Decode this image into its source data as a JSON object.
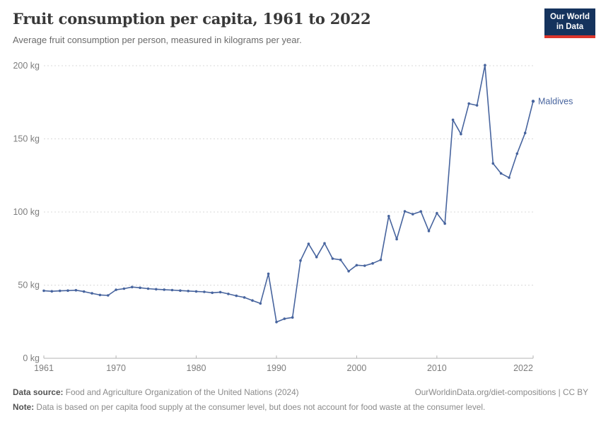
{
  "header": {
    "title": "Fruit consumption per capita, 1961 to 2022",
    "subtitle": "Average fruit consumption per person, measured in kilograms per year.",
    "logo": {
      "line1": "Our World",
      "line2": "in Data",
      "bg_color": "#15335d",
      "bar_color": "#dc352b"
    }
  },
  "chart_data": {
    "type": "line",
    "title": "Fruit consumption per capita, 1961 to 2022",
    "xlabel": "",
    "ylabel": "kilograms per year",
    "xlim": [
      1961,
      2022
    ],
    "ylim": [
      0,
      207
    ],
    "grid": "horizontal-dashed",
    "legend_position": "end-of-line-label",
    "x_ticks": [
      1961,
      1970,
      1980,
      1990,
      2000,
      2010,
      2022
    ],
    "y_ticks": [
      {
        "value": 0,
        "label": "0 kg"
      },
      {
        "value": 50,
        "label": "50 kg"
      },
      {
        "value": 100,
        "label": "100 kg"
      },
      {
        "value": 150,
        "label": "150 kg"
      },
      {
        "value": 200,
        "label": "200 kg"
      }
    ],
    "line_color": "#47649e",
    "series": [
      {
        "name": "Maldives",
        "x": [
          1961,
          1962,
          1963,
          1964,
          1965,
          1966,
          1967,
          1968,
          1969,
          1970,
          1971,
          1972,
          1973,
          1974,
          1975,
          1976,
          1977,
          1978,
          1979,
          1980,
          1981,
          1982,
          1983,
          1984,
          1985,
          1986,
          1987,
          1988,
          1989,
          1990,
          1991,
          1992,
          1993,
          1994,
          1995,
          1996,
          1997,
          1998,
          1999,
          2000,
          2001,
          2002,
          2003,
          2004,
          2005,
          2006,
          2007,
          2008,
          2009,
          2010,
          2011,
          2012,
          2013,
          2014,
          2015,
          2016,
          2017,
          2018,
          2019,
          2020,
          2021,
          2022
        ],
        "values": [
          46.2,
          45.8,
          46.1,
          46.3,
          46.5,
          45.6,
          44.4,
          43.3,
          43.0,
          46.8,
          47.6,
          48.7,
          48.2,
          47.6,
          47.2,
          46.9,
          46.6,
          46.3,
          46.0,
          45.7,
          45.4,
          44.8,
          45.2,
          44.0,
          42.7,
          41.6,
          39.5,
          37.5,
          57.8,
          24.8,
          27.0,
          27.9,
          66.8,
          78.2,
          69.2,
          78.6,
          68.1,
          67.3,
          59.5,
          63.6,
          63.3,
          64.9,
          67.3,
          97.2,
          81.4,
          100.5,
          98.5,
          100.4,
          87.0,
          99.2,
          92.1,
          163.0,
          153.3,
          174.1,
          172.9,
          200.4,
          133.2,
          126.4,
          123.5,
          139.9,
          154.0,
          175.7
        ]
      }
    ]
  },
  "footer": {
    "data_source_label": "Data source:",
    "data_source_text": " Food and Agriculture Organization of the United Nations (2024)",
    "citation": "OurWorldinData.org/diet-compositions | CC BY",
    "note_label": "Note:",
    "note_text": " Data is based on per capita food supply at the consumer level, but does not account for food waste at the consumer level."
  }
}
